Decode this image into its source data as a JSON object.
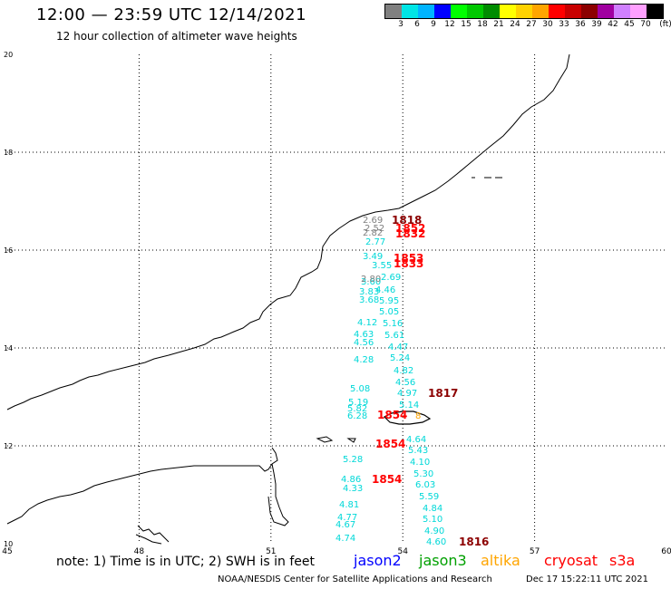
{
  "header": {
    "title": "12:00 — 23:59 UTC 12/14/2021",
    "subtitle": "12 hour collection of altimeter wave heights"
  },
  "colorbar": {
    "colors": [
      "#808080",
      "#00e5e5",
      "#00b4ff",
      "#0000ff",
      "#00ff00",
      "#00c800",
      "#008c00",
      "#ffff00",
      "#ffd200",
      "#ffa500",
      "#ff0000",
      "#c80000",
      "#8c0000",
      "#a000a0",
      "#d080ff",
      "#ffa0ff",
      "#000000"
    ],
    "labels": [
      "3",
      "6",
      "9",
      "12",
      "15",
      "18",
      "21",
      "24",
      "27",
      "30",
      "33",
      "36",
      "39",
      "42",
      "45",
      "70",
      "(ft)"
    ]
  },
  "axes": {
    "x_ticks": [
      "45",
      "48",
      "51",
      "54",
      "57",
      "60"
    ],
    "y_ticks": [
      "20",
      "18",
      "16",
      "14",
      "12",
      "10"
    ]
  },
  "obs_colors": {
    "jason3": "#00d8d8",
    "gray": "#808080",
    "cryosat": "#ff0000",
    "altika": "#ffa500",
    "time_dark": "#8c0000"
  },
  "cyan_labels": [
    "2.77",
    "3.49",
    "3.55",
    "2.69",
    "3.60",
    "4.46",
    "3.83",
    "3.68",
    "5.95",
    "5.05",
    "4.12",
    "5.16",
    "4.63",
    "5.61",
    "4.56",
    "4.47",
    "4.28",
    "5.24",
    "4.82",
    "4.56",
    "5.08",
    "4.97",
    "5.19",
    "5.14",
    "5.82",
    "6.28",
    "4.64",
    "5.43",
    "5.28",
    "4.10",
    "5.30",
    "4.86",
    "6.03",
    "4.33",
    "5.59",
    "4.81",
    "4.84",
    "4.77",
    "5.10",
    "4.67",
    "4.90",
    "4.74",
    "4.60"
  ],
  "gray_labels": [
    "2.69",
    "2.52",
    "2.82",
    "2.80"
  ],
  "time_labels": [
    "1818",
    "1852",
    "1832",
    "1853",
    "1833",
    "1817",
    "1854",
    "1854",
    "1854",
    "1816"
  ],
  "legend": {
    "note": "note: 1) Time is in UTC; 2) SWH is in feet",
    "sat1": "jason2",
    "sat2": "jason3",
    "sat3": "altika",
    "sat4": "cryosat",
    "sat5": "s3a",
    "sat1_color": "#0000ff",
    "sat2_color": "#00a000",
    "sat3_color": "#ffa500",
    "sat4_color": "#ff0000",
    "sat5_color": "#ff0000"
  },
  "credit": "NOAA/NESDIS Center for Satellite Applications and Research",
  "credit_date": "Dec 17 15:22:11 UTC 2021"
}
